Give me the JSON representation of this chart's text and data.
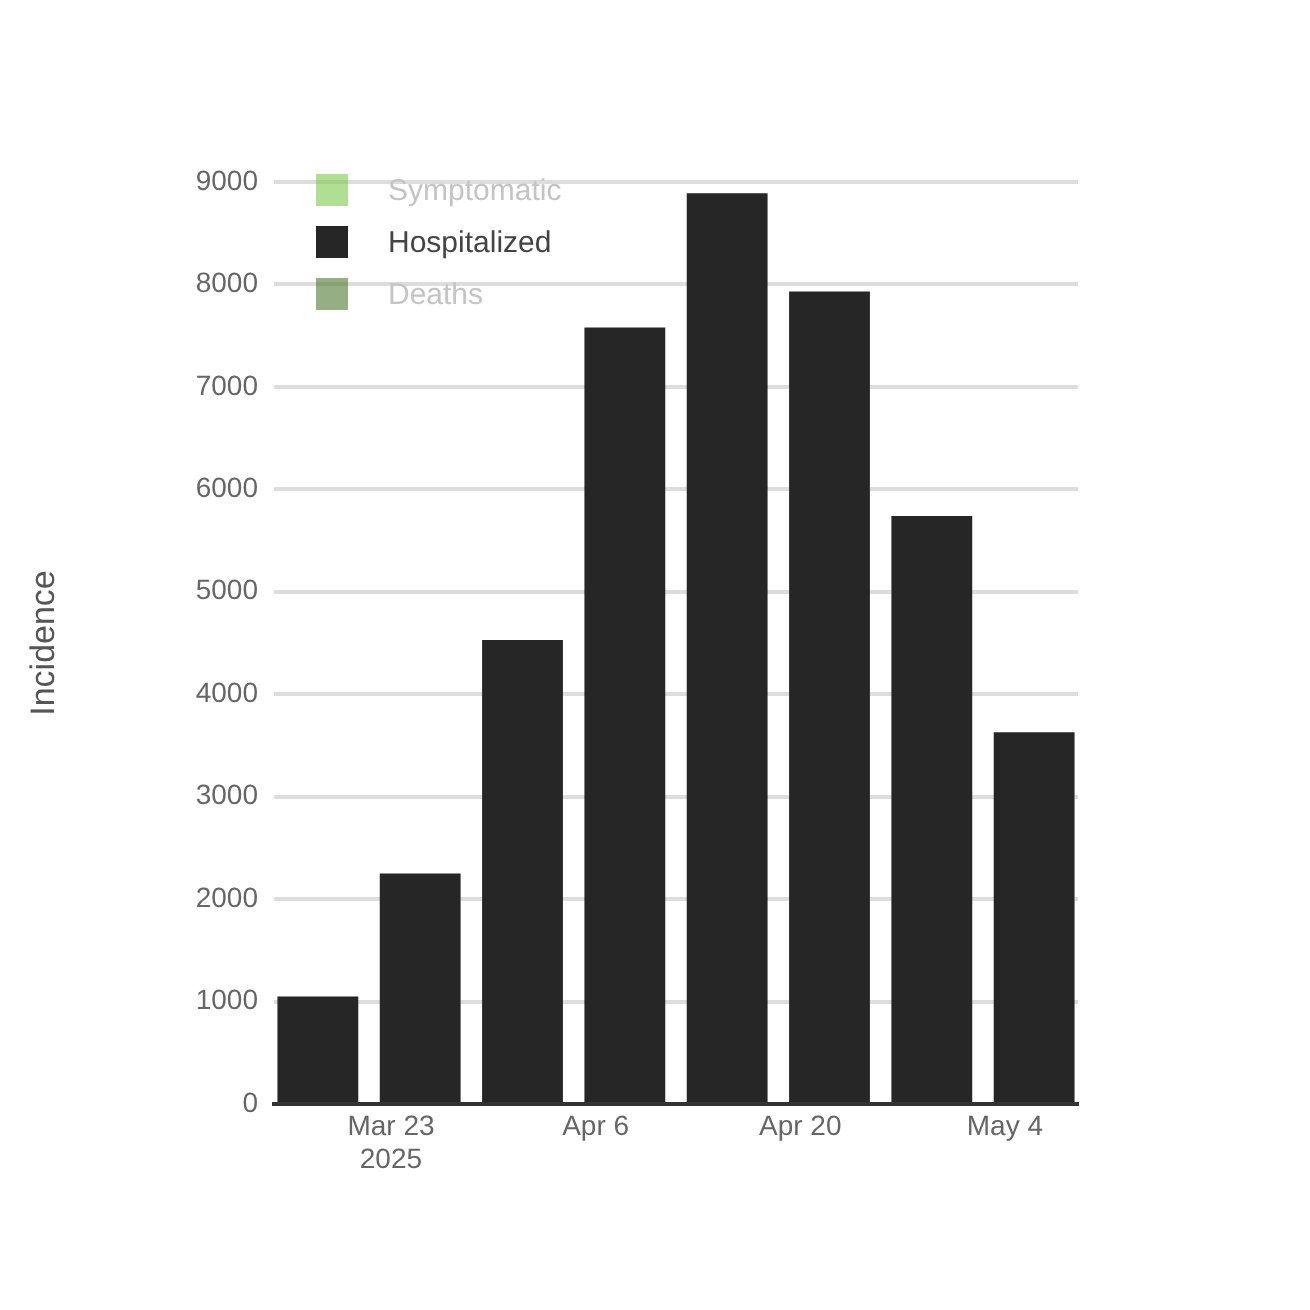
{
  "chart_data": {
    "type": "bar",
    "ylabel": "Incidence",
    "x": [
      "2025-03-18",
      "2025-03-25",
      "2025-04-01",
      "2025-04-08",
      "2025-04-15",
      "2025-04-22",
      "2025-04-29",
      "2025-05-06"
    ],
    "series": [
      {
        "name": "Symptomatic",
        "color": "#7cc84a",
        "values": [
          null,
          null,
          null,
          null,
          null,
          null,
          null,
          null
        ]
      },
      {
        "name": "Hospitalized",
        "color": "#262626",
        "values": [
          1050,
          2250,
          4530,
          7580,
          8890,
          7930,
          5740,
          3630
        ]
      },
      {
        "name": "Deaths",
        "color": "#4f7a2e",
        "values": [
          null,
          null,
          null,
          null,
          null,
          null,
          null,
          null
        ]
      }
    ],
    "xlim": [
      "2025-03-15",
      "2025-05-09"
    ],
    "xticks": [
      {
        "value": "2025-03-23",
        "label": "Mar 23\n2025"
      },
      {
        "value": "2025-04-06",
        "label": "Apr 6"
      },
      {
        "value": "2025-04-20",
        "label": "Apr 20"
      },
      {
        "value": "2025-05-04",
        "label": "May 4"
      }
    ],
    "ylim": [
      0,
      9000
    ],
    "yticks": [
      0,
      1000,
      2000,
      3000,
      4000,
      5000,
      6000,
      7000,
      8000,
      9000
    ],
    "grid": "y",
    "legend": "top left"
  }
}
